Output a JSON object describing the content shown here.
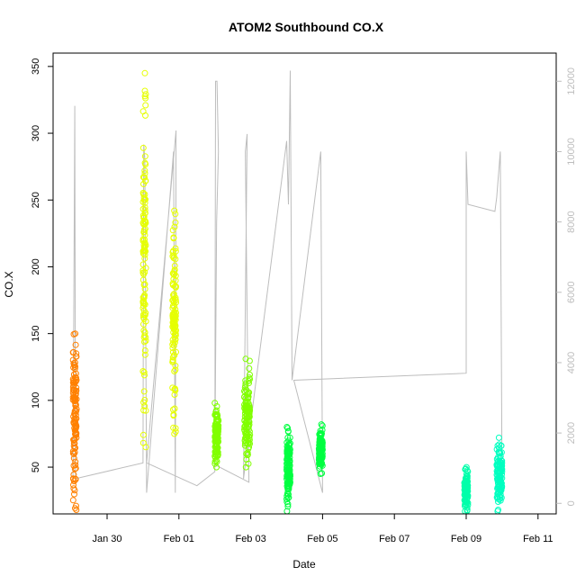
{
  "chart_data": {
    "type": "scatter",
    "title": "ATOM2 Southbound CO.X",
    "xlabel": "Date",
    "ylabel": "CO.X",
    "x_ticks": [
      "Jan 30",
      "Feb 01",
      "Feb 03",
      "Feb 05",
      "Feb 07",
      "Feb 09",
      "Feb 11"
    ],
    "x_range_days": [
      -1.4,
      11.6
    ],
    "ylim": [
      15,
      360
    ],
    "y_ticks": [
      50,
      100,
      150,
      200,
      250,
      300,
      350
    ],
    "y2lim": [
      -300,
      12800
    ],
    "y2_ticks": [
      0,
      2000,
      4000,
      6000,
      8000,
      10000,
      12000
    ],
    "grid": false,
    "series": [
      {
        "color": "#ff8000",
        "x_range": [
          -0.95,
          -0.85
        ],
        "y_range": [
          18,
          150
        ]
      },
      {
        "color": "#e6ff00",
        "x_range": [
          1.0,
          1.08
        ],
        "y_range": [
          65,
          345
        ]
      },
      {
        "color": "#e6ff00",
        "x_range": [
          1.82,
          1.92
        ],
        "y_range": [
          75,
          242
        ]
      },
      {
        "color": "#80ff00",
        "x_range": [
          3.0,
          3.1
        ],
        "y_range": [
          50,
          98
        ]
      },
      {
        "color": "#80ff00",
        "x_range": [
          3.82,
          3.98
        ],
        "y_range": [
          50,
          131
        ]
      },
      {
        "color": "#00ff40",
        "x_range": [
          5.0,
          5.1
        ],
        "y_range": [
          17,
          80
        ]
      },
      {
        "color": "#00ff40",
        "x_range": [
          5.9,
          6.0
        ],
        "y_range": [
          45,
          82
        ]
      },
      {
        "color": "#00ffaa",
        "x_range": [
          9.95,
          10.05
        ],
        "y_range": [
          17,
          50
        ]
      },
      {
        "color": "#00ffc0",
        "x_range": [
          10.85,
          11.0
        ],
        "y_range": [
          17,
          72
        ]
      }
    ],
    "secondary_line": {
      "color": "#bdbdbd",
      "points": [
        [
          -0.95,
          700
        ],
        [
          -0.9,
          11300
        ],
        [
          -0.88,
          700
        ],
        [
          1.0,
          1150
        ],
        [
          1.02,
          10200
        ],
        [
          1.05,
          9800
        ],
        [
          1.1,
          300
        ],
        [
          1.85,
          10000
        ],
        [
          1.9,
          300
        ],
        [
          1.92,
          10600
        ],
        [
          1.1,
          1150
        ],
        [
          2.5,
          500
        ],
        [
          3.0,
          900
        ],
        [
          3.02,
          12000
        ],
        [
          3.06,
          12000
        ],
        [
          3.1,
          10000
        ],
        [
          3.05,
          8000
        ],
        [
          3.0,
          1100
        ],
        [
          3.95,
          600
        ],
        [
          3.85,
          10000
        ],
        [
          3.9,
          10500
        ],
        [
          3.8,
          700
        ],
        [
          5.0,
          10300
        ],
        [
          5.05,
          8500
        ],
        [
          5.1,
          12300
        ],
        [
          5.15,
          3500
        ],
        [
          5.95,
          10000
        ],
        [
          6.0,
          300
        ],
        [
          5.2,
          3500
        ],
        [
          10.0,
          3700
        ],
        [
          10.0,
          10000
        ],
        [
          10.05,
          8500
        ],
        [
          10.8,
          8300
        ],
        [
          10.85,
          8700
        ],
        [
          10.95,
          10000
        ],
        [
          11.0,
          300
        ]
      ]
    }
  }
}
